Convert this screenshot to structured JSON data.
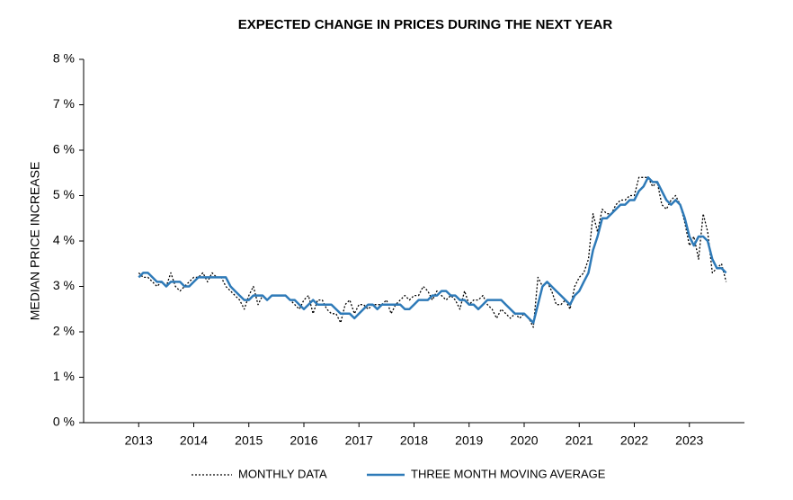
{
  "chart_data": {
    "type": "line",
    "title": "EXPECTED CHANGE IN PRICES DURING THE NEXT YEAR",
    "y_label": "MEDIAN PRICE INCREASE",
    "xlim": [
      2012,
      2024
    ],
    "xticks": [
      2013,
      2014,
      2015,
      2016,
      2017,
      2018,
      2019,
      2020,
      2021,
      2022,
      2023
    ],
    "ylim": [
      0,
      8
    ],
    "yticks": [
      {
        "value": 0,
        "label": "0 %"
      },
      {
        "value": 1,
        "label": "1 %"
      },
      {
        "value": 2,
        "label": "2 %"
      },
      {
        "value": 3,
        "label": "3 %"
      },
      {
        "value": 4,
        "label": "4 %"
      },
      {
        "value": 5,
        "label": "5 %"
      },
      {
        "value": 6,
        "label": "6 %"
      },
      {
        "value": 7,
        "label": "7 %"
      },
      {
        "value": 8,
        "label": "8 %"
      }
    ],
    "grid": false,
    "x": [
      2013,
      2013.083,
      2013.167,
      2013.25,
      2013.333,
      2013.417,
      2013.5,
      2013.583,
      2013.667,
      2013.75,
      2013.833,
      2013.917,
      2014,
      2014.083,
      2014.167,
      2014.25,
      2014.333,
      2014.417,
      2014.5,
      2014.583,
      2014.667,
      2014.75,
      2014.833,
      2014.917,
      2015,
      2015.083,
      2015.167,
      2015.25,
      2015.333,
      2015.417,
      2015.5,
      2015.583,
      2015.667,
      2015.75,
      2015.833,
      2015.917,
      2016,
      2016.083,
      2016.167,
      2016.25,
      2016.333,
      2016.417,
      2016.5,
      2016.583,
      2016.667,
      2016.75,
      2016.833,
      2016.917,
      2017,
      2017.083,
      2017.167,
      2017.25,
      2017.333,
      2017.417,
      2017.5,
      2017.583,
      2017.667,
      2017.75,
      2017.833,
      2017.917,
      2018,
      2018.083,
      2018.167,
      2018.25,
      2018.333,
      2018.417,
      2018.5,
      2018.583,
      2018.667,
      2018.75,
      2018.833,
      2018.917,
      2019,
      2019.083,
      2019.167,
      2019.25,
      2019.333,
      2019.417,
      2019.5,
      2019.583,
      2019.667,
      2019.75,
      2019.833,
      2019.917,
      2020,
      2020.083,
      2020.167,
      2020.25,
      2020.333,
      2020.417,
      2020.5,
      2020.583,
      2020.667,
      2020.75,
      2020.833,
      2020.917,
      2021,
      2021.083,
      2021.167,
      2021.25,
      2021.333,
      2021.417,
      2021.5,
      2021.583,
      2021.667,
      2021.75,
      2021.833,
      2021.917,
      2022,
      2022.083,
      2022.167,
      2022.25,
      2022.333,
      2022.417,
      2022.5,
      2022.583,
      2022.667,
      2022.75,
      2022.833,
      2022.917,
      2023,
      2023.083,
      2023.167,
      2023.25,
      2023.333,
      2023.417,
      2023.5,
      2023.583,
      2023.667
    ],
    "series": [
      {
        "name": "MONTHLY DATA",
        "color": "#000000",
        "dash": "dotted",
        "values": [
          3.3,
          3.2,
          3.2,
          3.1,
          3.0,
          3.1,
          3.0,
          3.3,
          3.0,
          2.9,
          3.0,
          3.1,
          3.2,
          3.2,
          3.3,
          3.1,
          3.3,
          3.2,
          3.2,
          3.0,
          2.9,
          2.8,
          2.7,
          2.5,
          2.8,
          3.0,
          2.6,
          2.8,
          2.7,
          2.8,
          2.8,
          2.8,
          2.8,
          2.7,
          2.6,
          2.5,
          2.7,
          2.8,
          2.4,
          2.7,
          2.7,
          2.5,
          2.4,
          2.4,
          2.2,
          2.6,
          2.7,
          2.4,
          2.6,
          2.6,
          2.5,
          2.6,
          2.6,
          2.6,
          2.7,
          2.4,
          2.6,
          2.7,
          2.8,
          2.7,
          2.8,
          2.8,
          3.0,
          2.9,
          2.7,
          2.9,
          2.8,
          2.7,
          2.8,
          2.7,
          2.5,
          2.9,
          2.6,
          2.7,
          2.7,
          2.8,
          2.6,
          2.5,
          2.3,
          2.5,
          2.4,
          2.3,
          2.4,
          2.3,
          2.4,
          2.3,
          2.1,
          3.2,
          3.0,
          3.1,
          2.9,
          2.6,
          2.6,
          2.7,
          2.5,
          3.0,
          3.2,
          3.3,
          3.6,
          4.6,
          4.2,
          4.7,
          4.6,
          4.6,
          4.8,
          4.9,
          4.9,
          5.0,
          5.0,
          5.4,
          5.4,
          5.4,
          5.2,
          5.3,
          4.8,
          4.7,
          4.9,
          5.0,
          4.8,
          4.4,
          3.9,
          4.1,
          3.6,
          4.6,
          4.2,
          3.3,
          3.4,
          3.5,
          3.1
        ]
      },
      {
        "name": "THREE MONTH MOVING AVERAGE",
        "color": "#2e7ab8",
        "dash": "solid",
        "values": [
          3.2,
          3.3,
          3.3,
          3.2,
          3.1,
          3.1,
          3.0,
          3.1,
          3.1,
          3.1,
          3.0,
          3.0,
          3.1,
          3.2,
          3.2,
          3.2,
          3.2,
          3.2,
          3.2,
          3.2,
          3.0,
          2.9,
          2.8,
          2.7,
          2.7,
          2.8,
          2.8,
          2.8,
          2.7,
          2.8,
          2.8,
          2.8,
          2.8,
          2.7,
          2.7,
          2.6,
          2.5,
          2.6,
          2.7,
          2.6,
          2.6,
          2.6,
          2.6,
          2.5,
          2.4,
          2.4,
          2.4,
          2.3,
          2.4,
          2.5,
          2.6,
          2.6,
          2.5,
          2.6,
          2.6,
          2.6,
          2.6,
          2.6,
          2.5,
          2.5,
          2.6,
          2.7,
          2.7,
          2.7,
          2.8,
          2.8,
          2.9,
          2.9,
          2.8,
          2.8,
          2.7,
          2.7,
          2.6,
          2.6,
          2.5,
          2.6,
          2.7,
          2.7,
          2.7,
          2.7,
          2.6,
          2.5,
          2.4,
          2.4,
          2.4,
          2.3,
          2.2,
          2.6,
          3.0,
          3.1,
          3.0,
          2.9,
          2.8,
          2.7,
          2.6,
          2.8,
          2.9,
          3.1,
          3.3,
          3.8,
          4.1,
          4.5,
          4.5,
          4.6,
          4.7,
          4.8,
          4.8,
          4.9,
          4.9,
          5.1,
          5.2,
          5.4,
          5.3,
          5.3,
          5.1,
          4.9,
          4.8,
          4.9,
          4.8,
          4.5,
          4.1,
          3.9,
          4.1,
          4.1,
          4.0,
          3.6,
          3.4,
          3.4,
          3.3
        ]
      }
    ]
  }
}
